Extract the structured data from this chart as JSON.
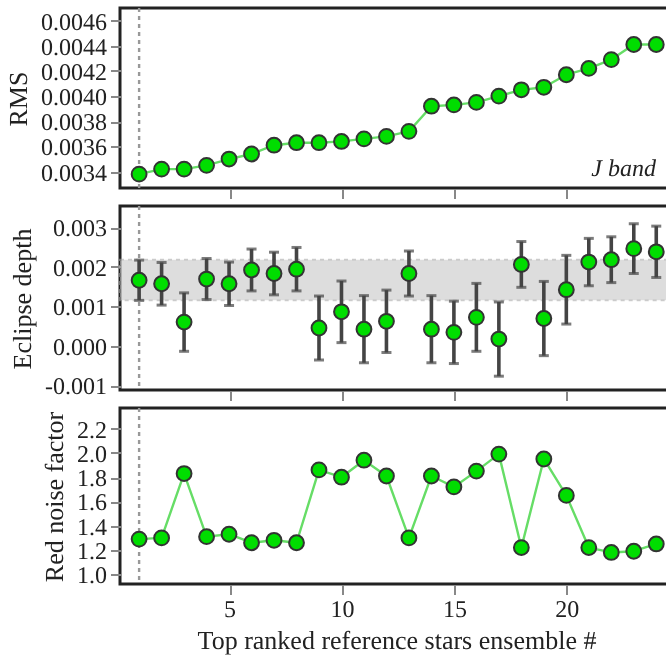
{
  "chart_data": [
    {
      "type": "line",
      "x": [
        1,
        2,
        3,
        4,
        5,
        6,
        7,
        8,
        9,
        10,
        11,
        12,
        13,
        14,
        15,
        16,
        17,
        18,
        19,
        20,
        21,
        22,
        23,
        24
      ],
      "xlim": [
        0.15,
        24.7
      ],
      "xticks": [
        5,
        10,
        15,
        20
      ],
      "ylim": [
        0.00327,
        0.0047
      ],
      "yticks": [
        0.0034,
        0.0036,
        0.0038,
        {
          "value": 0.004,
          "label": "0.0040"
        },
        0.0042,
        0.0044,
        0.0046
      ],
      "ylabel": "RMS",
      "tick_labels": "y",
      "marker": "circle",
      "grid": false,
      "series": [
        {
          "color": "#00dd00",
          "values": [
            0.00338,
            0.00342,
            0.00342,
            0.00345,
            0.0035,
            0.00354,
            0.00361,
            0.00363,
            0.00363,
            0.00364,
            0.00366,
            0.00368,
            0.00372,
            0.00392,
            0.00393,
            0.00395,
            0.004,
            0.00405,
            0.00407,
            0.00417,
            0.00422,
            0.00429,
            0.00441,
            0.00441
          ]
        }
      ],
      "ref_lines": [
        {
          "axis": "x",
          "value": 1,
          "line_style": "dotted",
          "color": "#999999"
        }
      ],
      "annotations": [
        "J band"
      ]
    },
    {
      "type": "scatter",
      "x": [
        1,
        2,
        3,
        4,
        5,
        6,
        7,
        8,
        9,
        10,
        11,
        12,
        13,
        14,
        15,
        16,
        17,
        18,
        19,
        20,
        21,
        22,
        23,
        24
      ],
      "xlim": [
        0.15,
        24.7
      ],
      "xticks": [
        5,
        10,
        15,
        20
      ],
      "ylim": [
        -0.00112,
        0.00354
      ],
      "yticks": [
        -0.001,
        {
          "value": 0,
          "label": "0.000"
        },
        0.001,
        0.002,
        0.003
      ],
      "ylabel": "Eclipse depth",
      "tick_labels": "y",
      "marker": "circle",
      "grid": false,
      "series": [
        {
          "color": "#00dd00",
          "values": [
            0.00166,
            0.00157,
            0.0006,
            0.00169,
            0.00157,
            0.00192,
            0.00183,
            0.00194,
            0.00045,
            0.00086,
            0.00042,
            0.00062,
            0.00183,
            0.00042,
            0.00034,
            0.00072,
            0.00017,
            0.00206,
            0.00069,
            0.00142,
            0.00212,
            0.00218,
            0.00246,
            0.00238
          ],
          "errors": [
            0.00051,
            0.00054,
            0.00074,
            0.00052,
            0.00055,
            0.00053,
            0.00054,
            0.00055,
            0.00081,
            0.00078,
            0.00085,
            0.00079,
            0.00057,
            0.00085,
            0.00079,
            0.00086,
            0.00094,
            0.00058,
            0.00094,
            0.00087,
            0.0006,
            0.00058,
            0.00063,
            0.00065
          ]
        }
      ],
      "ref_lines": [
        {
          "axis": "x",
          "value": 1,
          "line_style": "dotted",
          "color": "#999999"
        }
      ],
      "bands": [
        {
          "axis": "y",
          "from": 0.00115,
          "to": 0.00218,
          "color": "#c8c8c8"
        }
      ]
    },
    {
      "type": "line",
      "x": [
        1,
        2,
        3,
        4,
        5,
        6,
        7,
        8,
        9,
        10,
        11,
        12,
        13,
        14,
        15,
        16,
        17,
        18,
        19,
        20,
        21,
        22,
        23,
        24
      ],
      "xlim": [
        0.15,
        24.7
      ],
      "xticks": [
        5,
        10,
        15,
        20
      ],
      "ylim": [
        0.92,
        2.37
      ],
      "yticks": [
        {
          "value": 1,
          "label": "1.0"
        },
        1.2,
        1.4,
        1.6,
        1.8,
        {
          "value": 2,
          "label": "2.0"
        },
        2.2
      ],
      "ylabel": "Red noise factor",
      "xlabel": "Top ranked reference stars ensemble #",
      "marker": "circle",
      "grid": false,
      "series": [
        {
          "color": "#00dd00",
          "values": [
            1.29,
            1.3,
            1.83,
            1.31,
            1.33,
            1.26,
            1.28,
            1.26,
            1.86,
            1.8,
            1.94,
            1.81,
            1.3,
            1.81,
            1.72,
            1.85,
            1.99,
            1.22,
            1.95,
            1.65,
            1.22,
            1.18,
            1.19,
            1.25
          ]
        }
      ],
      "ref_lines": [
        {
          "axis": "x",
          "value": 1,
          "line_style": "dotted",
          "color": "#999999"
        }
      ]
    }
  ]
}
